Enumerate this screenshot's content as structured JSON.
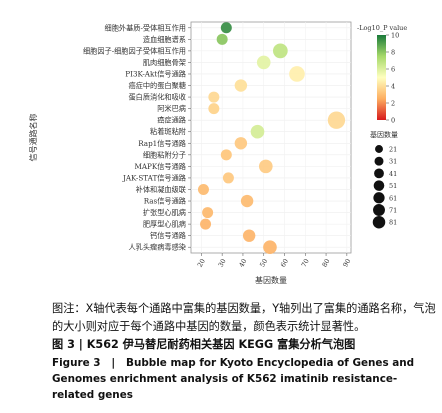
{
  "chart_data": {
    "type": "scatter",
    "categories": [
      "细胞外基质-受体相互作用",
      "造血细胞谱系",
      "细胞因子-细胞因子受体相互作用",
      "肌肉细胞骨架",
      "PI3K-Akt信号通路",
      "癌症中的蛋白聚糖",
      "蛋白质消化和吸收",
      "阿米巴病",
      "癌症通路",
      "粘着斑粘附",
      "Rap1信号通路",
      "细胞粘附分子",
      "MAPK信号通路",
      "JAK-STAT信号通路",
      "补体和凝血级联",
      "Ras信号通路",
      "扩张型心肌病",
      "肥厚型心肌病",
      "钙信号通路",
      "人乳头瘤病毒感染"
    ],
    "x": [
      32,
      30,
      58,
      50,
      66,
      39,
      26,
      26,
      85,
      47,
      39,
      32,
      51,
      33,
      21,
      42,
      23,
      22,
      43,
      53
    ],
    "size": [
      21,
      21,
      51,
      41,
      61,
      31,
      21,
      21,
      81,
      41,
      31,
      21,
      41,
      21,
      21,
      31,
      21,
      21,
      31,
      41
    ],
    "neg_log10_p": [
      9.5,
      8.0,
      6.8,
      5.8,
      4.5,
      4.0,
      3.8,
      3.6,
      3.8,
      6.2,
      3.3,
      3.2,
      3.4,
      3.3,
      2.9,
      2.9,
      2.8,
      2.7,
      2.7,
      2.7
    ],
    "xlabel": "基因数量",
    "ylabel": "信号通路名称",
    "xticks": [
      20,
      30,
      40,
      50,
      60,
      70,
      80,
      90
    ],
    "xlim": [
      15,
      92
    ],
    "colorbar": {
      "title": "-Log10_P value",
      "ticks": [
        10,
        8,
        6,
        4,
        2,
        0
      ],
      "range": [
        0,
        10
      ]
    },
    "size_legend": {
      "title": "基因数量",
      "values": [
        21,
        31,
        41,
        51,
        61,
        71,
        81
      ]
    },
    "colors": {
      "low": "#d7191c",
      "mid_low": "#fdae61",
      "mid": "#ffffbf",
      "mid_high": "#a6d96a",
      "high": "#1a7a3a"
    }
  },
  "caption": {
    "note": "图注：X轴代表每个通路中富集的基因数量，Y轴列出了富集的通路名称，气泡的大小则对应于每个通路中基因的数量，颜色表示统计显著性。",
    "figure_cn_label": "图 3",
    "figure_cn_title": "K562 伊马替尼耐药相关基因 KEGG 富集分析气泡图",
    "figure_en_label": "Figure 3",
    "figure_en_title": "Bubble map for Kyoto Encyclopedia of Genes and Genomes enrichment analysis of K562 imatinib resistance-related genes"
  }
}
